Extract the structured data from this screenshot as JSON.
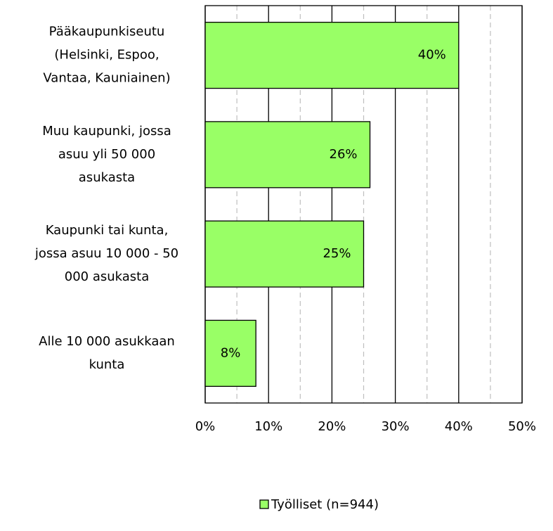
{
  "chart_data": {
    "type": "hbar",
    "categories": [
      "Pääkaupunkiseutu\n(Helsinki, Espoo,\nVantaa, Kauniainen)",
      "Muu kaupunki, jossa\nasuu yli 50 000\nasukasta",
      "Kaupunki tai kunta,\njossa asuu 10 000 - 50\n000 asukasta",
      "Alle 10 000 asukkaan\nkunta"
    ],
    "series": [
      {
        "name": "Työlliset (n=944)",
        "color": "#99ff66",
        "values": [
          40,
          26,
          25,
          8
        ],
        "value_labels": [
          "40%",
          "26%",
          "25%",
          "8%"
        ]
      }
    ],
    "xlim": [
      0,
      50
    ],
    "xticks": [
      {
        "value": 0,
        "label": "0%"
      },
      {
        "value": 10,
        "label": "10%"
      },
      {
        "value": 20,
        "label": "20%"
      },
      {
        "value": 30,
        "label": "30%"
      },
      {
        "value": 40,
        "label": "40%"
      },
      {
        "value": 50,
        "label": "50%"
      }
    ],
    "minor_xticks": [
      5,
      15,
      25,
      35,
      45
    ],
    "grid": true,
    "legend": "bottom"
  }
}
